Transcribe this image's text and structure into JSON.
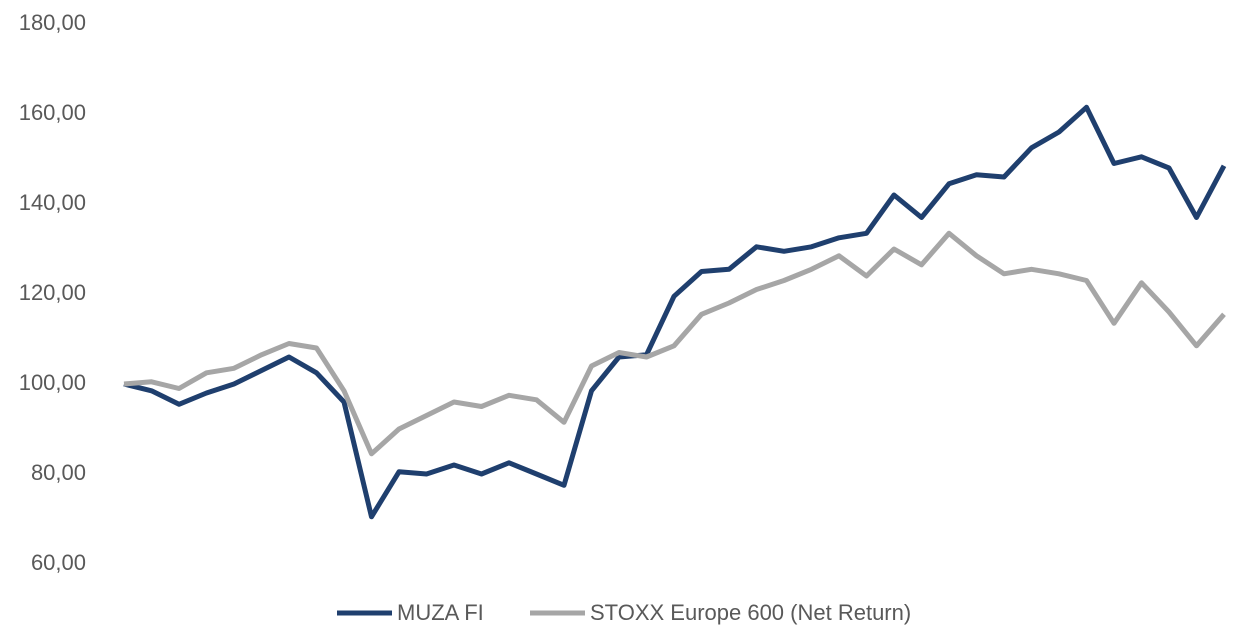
{
  "chart_data": {
    "type": "line",
    "categories": [
      null,
      null,
      null,
      null,
      null,
      null,
      null,
      null,
      null,
      null,
      null,
      null,
      null,
      null,
      null,
      null,
      null,
      null,
      null,
      null,
      null,
      null,
      null,
      null,
      null,
      null,
      null,
      null,
      null,
      null,
      null,
      null,
      null,
      null,
      null,
      null,
      null,
      null,
      null,
      null,
      null
    ],
    "series": [
      {
        "name": "MUZA FI",
        "color": "#1f3f6e",
        "values": [
          100,
          98.5,
          95.5,
          98,
          100,
          103,
          106,
          102.5,
          96,
          70.5,
          80.5,
          80,
          82,
          80,
          82.5,
          80,
          77.5,
          98.5,
          106,
          106.5,
          119.5,
          125,
          125.5,
          130.5,
          129.5,
          130.5,
          132.5,
          133.5,
          142,
          137,
          144.5,
          146.5,
          146,
          152.5,
          156,
          161.5,
          149,
          150.5,
          148,
          137,
          148.5
        ]
      },
      {
        "name": "STOXX Europe 600 (Net Return)",
        "color": "#a6a6a6",
        "values": [
          100,
          100.5,
          99,
          102.5,
          103.5,
          106.5,
          109,
          108,
          98.5,
          84.5,
          90,
          93,
          96,
          95,
          97.5,
          96.5,
          91.5,
          104,
          107,
          106,
          108.5,
          115.5,
          118,
          121,
          123,
          125.5,
          128.5,
          124,
          130,
          126.5,
          133.5,
          128.5,
          124.5,
          125.5,
          124.5,
          123,
          113.5,
          122.5,
          116,
          108.5,
          115.5
        ]
      }
    ],
    "ylim": [
      60,
      180
    ],
    "yticks": [
      {
        "value": 60,
        "label": "60,00"
      },
      {
        "value": 80,
        "label": "80,00"
      },
      {
        "value": 100,
        "label": "100,00"
      },
      {
        "value": 120,
        "label": "120,00"
      },
      {
        "value": 140,
        "label": "140,00"
      },
      {
        "value": 160,
        "label": "160,00"
      },
      {
        "value": 180,
        "label": "180,00"
      }
    ],
    "grid": false,
    "legend": "bottom"
  }
}
